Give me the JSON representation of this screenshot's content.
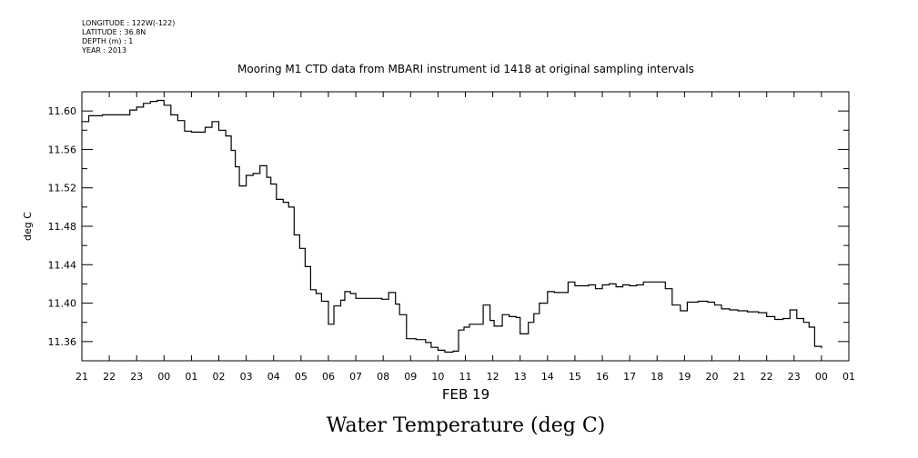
{
  "meta": {
    "longitude": "LONGITUDE : 122W(-122)",
    "latitude": "LATITUDE : 36.8N",
    "depth": "DEPTH (m) : 1",
    "year": "YEAR : 2013"
  },
  "chart_data": {
    "type": "line",
    "title": "Mooring M1 CTD data from MBARI instrument id 1418 at original sampling intervals",
    "xlabel": "FEB 19",
    "ylabel": "deg C",
    "footer_title": "Water Temperature (deg C)",
    "x_unit": "hours relative to 00 on FEB 19",
    "xlim": [
      -3,
      25
    ],
    "ylim": [
      11.34,
      11.62
    ],
    "x_tick_labels": [
      "21",
      "22",
      "23",
      "00",
      "01",
      "02",
      "03",
      "04",
      "05",
      "06",
      "07",
      "08",
      "09",
      "10",
      "11",
      "12",
      "13",
      "14",
      "15",
      "16",
      "17",
      "18",
      "19",
      "20",
      "21",
      "22",
      "23",
      "00",
      "01"
    ],
    "y_ticks": [
      11.36,
      11.4,
      11.44,
      11.48,
      11.52,
      11.56,
      11.6
    ],
    "y_tick_labels": [
      "11.36",
      "11.40",
      "11.44",
      "11.48",
      "11.52",
      "11.56",
      "11.60"
    ],
    "grid": false,
    "series": [
      {
        "values": [
          [
            -3.0,
            11.589
          ],
          [
            -2.75,
            11.595
          ],
          [
            -2.25,
            11.596
          ],
          [
            -1.75,
            11.596
          ],
          [
            -1.25,
            11.601
          ],
          [
            -1.0,
            11.604
          ],
          [
            -0.75,
            11.608
          ],
          [
            -0.5,
            11.61
          ],
          [
            -0.25,
            11.611
          ],
          [
            0.0,
            11.606
          ],
          [
            0.25,
            11.596
          ],
          [
            0.5,
            11.59
          ],
          [
            0.75,
            11.579
          ],
          [
            1.0,
            11.578
          ],
          [
            1.25,
            11.578
          ],
          [
            1.5,
            11.583
          ],
          [
            1.75,
            11.589
          ],
          [
            2.0,
            11.58
          ],
          [
            2.25,
            11.574
          ],
          [
            2.45,
            11.559
          ],
          [
            2.6,
            11.542
          ],
          [
            2.75,
            11.522
          ],
          [
            3.0,
            11.533
          ],
          [
            3.25,
            11.535
          ],
          [
            3.5,
            11.543
          ],
          [
            3.75,
            11.531
          ],
          [
            3.9,
            11.524
          ],
          [
            4.1,
            11.508
          ],
          [
            4.35,
            11.505
          ],
          [
            4.55,
            11.5
          ],
          [
            4.75,
            11.471
          ],
          [
            4.95,
            11.457
          ],
          [
            5.15,
            11.438
          ],
          [
            5.35,
            11.414
          ],
          [
            5.55,
            11.41
          ],
          [
            5.75,
            11.402
          ],
          [
            6.0,
            11.378
          ],
          [
            6.2,
            11.397
          ],
          [
            6.45,
            11.403
          ],
          [
            6.6,
            11.412
          ],
          [
            6.8,
            11.41
          ],
          [
            7.0,
            11.405
          ],
          [
            7.5,
            11.405
          ],
          [
            7.95,
            11.404
          ],
          [
            8.2,
            11.411
          ],
          [
            8.45,
            11.399
          ],
          [
            8.6,
            11.388
          ],
          [
            8.85,
            11.363
          ],
          [
            9.2,
            11.362
          ],
          [
            9.55,
            11.359
          ],
          [
            9.75,
            11.354
          ],
          [
            10.0,
            11.351
          ],
          [
            10.25,
            11.349
          ],
          [
            10.55,
            11.35
          ],
          [
            10.75,
            11.372
          ],
          [
            10.95,
            11.375
          ],
          [
            11.15,
            11.378
          ],
          [
            11.4,
            11.378
          ],
          [
            11.65,
            11.398
          ],
          [
            11.9,
            11.382
          ],
          [
            12.05,
            11.376
          ],
          [
            12.35,
            11.388
          ],
          [
            12.6,
            11.386
          ],
          [
            12.85,
            11.385
          ],
          [
            13.0,
            11.368
          ],
          [
            13.3,
            11.38
          ],
          [
            13.5,
            11.389
          ],
          [
            13.7,
            11.4
          ],
          [
            14.0,
            11.412
          ],
          [
            14.25,
            11.411
          ],
          [
            14.55,
            11.411
          ],
          [
            14.75,
            11.422
          ],
          [
            15.0,
            11.418
          ],
          [
            15.25,
            11.418
          ],
          [
            15.5,
            11.419
          ],
          [
            15.75,
            11.415
          ],
          [
            16.0,
            11.419
          ],
          [
            16.25,
            11.42
          ],
          [
            16.5,
            11.417
          ],
          [
            16.75,
            11.419
          ],
          [
            17.0,
            11.418
          ],
          [
            17.25,
            11.419
          ],
          [
            17.5,
            11.422
          ],
          [
            17.85,
            11.422
          ],
          [
            18.1,
            11.422
          ],
          [
            18.3,
            11.415
          ],
          [
            18.55,
            11.398
          ],
          [
            18.85,
            11.392
          ],
          [
            19.1,
            11.401
          ],
          [
            19.5,
            11.402
          ],
          [
            19.85,
            11.401
          ],
          [
            20.1,
            11.398
          ],
          [
            20.35,
            11.394
          ],
          [
            20.65,
            11.393
          ],
          [
            20.95,
            11.392
          ],
          [
            21.3,
            11.391
          ],
          [
            21.7,
            11.39
          ],
          [
            22.0,
            11.386
          ],
          [
            22.3,
            11.383
          ],
          [
            22.6,
            11.384
          ],
          [
            22.85,
            11.393
          ],
          [
            23.1,
            11.384
          ],
          [
            23.35,
            11.38
          ],
          [
            23.55,
            11.375
          ],
          [
            23.75,
            11.355
          ],
          [
            24.0,
            11.353
          ]
        ]
      }
    ]
  }
}
